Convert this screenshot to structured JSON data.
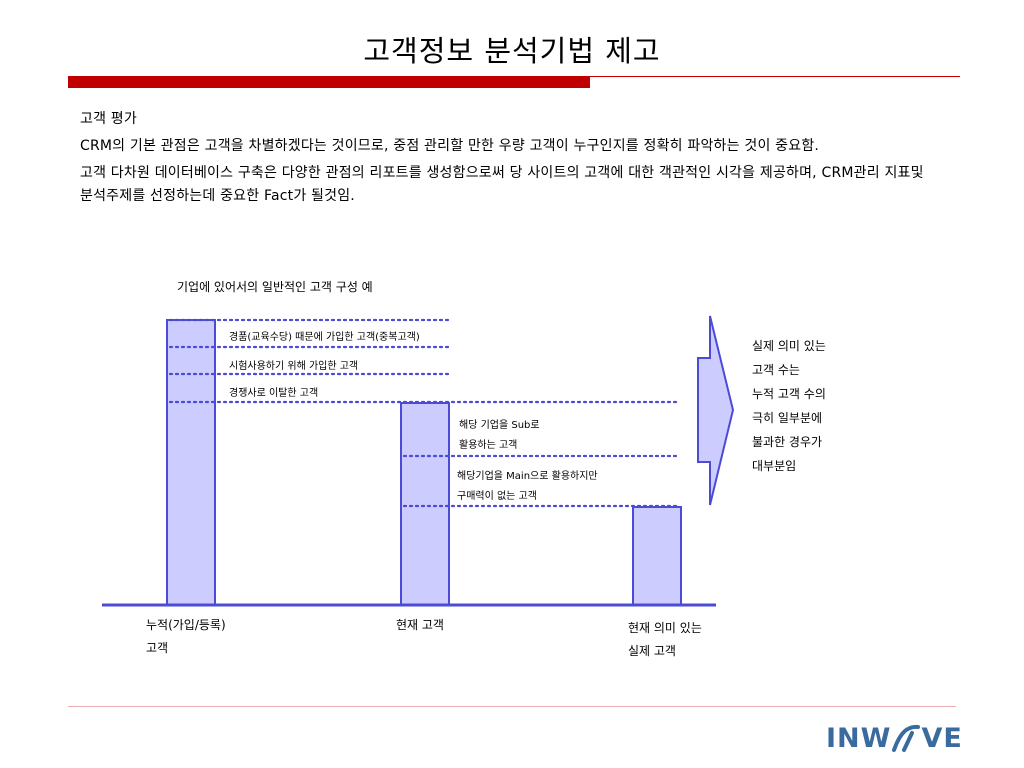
{
  "title": "고객정보 분석기법 제고",
  "section": {
    "heading": "고객 평가",
    "para1": "CRM의 기본 관점은 고객을 차별하겠다는 것이므로, 중점 관리할 만한 우량 고객이 누구인지를 정확히 파악하는 것이 중요함.",
    "para2": "고객 다차원 데이터베이스 구축은 다양한 관점의 리포트를 생성함으로써 당 사이트의 고객에 대한 객관적인 시각을 제공하며, CRM관리 지표및 분석주제를 선정하는데 중요한 Fact가 될것임."
  },
  "diagram": {
    "caption": "기업에 있어서의 일반적인 고객 구성 예",
    "labels": {
      "dup": "경품(교육수당) 때문에 가입한 고객(중복고객)",
      "trial": "시험사용하기 위해 가입한 고객",
      "competitor": "경쟁사로 이탈한 고객",
      "sub_line1": "해당 기업을 Sub로",
      "sub_line2": "활용하는 고객",
      "main_line1": "해당기업을 Main으로 활용하지만",
      "main_line2": "구매력이 없는 고객"
    },
    "axis": {
      "cumulative_line1": "누적(가입/등록)",
      "cumulative_line2": "고객",
      "current": "현재 고객",
      "real_line1": "현재 의미 있는",
      "real_line2": "실제 고객"
    },
    "side_note": [
      "실제 의미 있는",
      "고객 수는",
      "누적 고객 수의",
      "극히 일부분에",
      "불과한 경우가",
      "대부분임"
    ],
    "colors": {
      "bar_fill": "#ccccff",
      "bar_stroke": "#4b4bd6",
      "dots": "#4b4bd6",
      "accent": "#c00000"
    }
  },
  "logo": {
    "text_left": "INW",
    "text_right": "VE"
  }
}
